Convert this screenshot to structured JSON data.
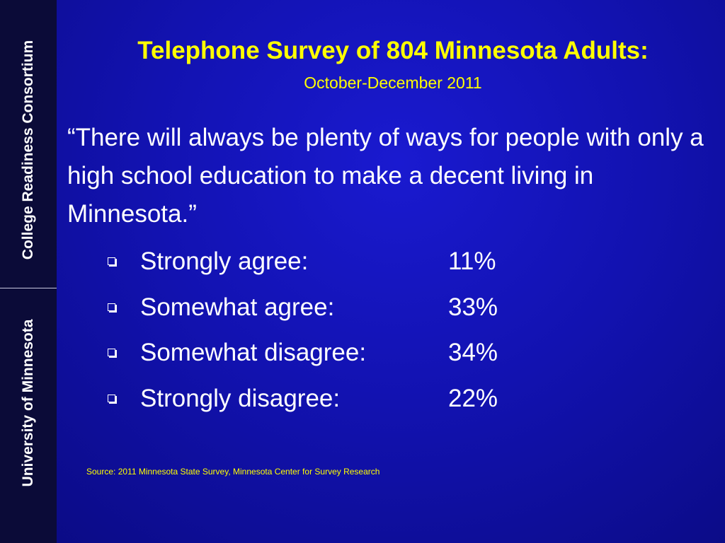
{
  "sidebar": {
    "top": "College Readiness Consortium",
    "bottom": "University of Minnesota"
  },
  "header": {
    "title": "Telephone Survey of 804 Minnesota Adults:",
    "subtitle": "October-December 2011"
  },
  "quote": "“There will always be plenty of ways for people with only a high school education to make a decent living in Minnesota.”",
  "items": [
    {
      "label": "Strongly agree:",
      "value": "11%"
    },
    {
      "label": "Somewhat agree:",
      "value": "33%"
    },
    {
      "label": "Somewhat disagree:",
      "value": "34%"
    },
    {
      "label": "Strongly disagree:",
      "value": "22%"
    }
  ],
  "source": "Source:  2011 Minnesota State Survey, Minnesota Center for Survey Research"
}
